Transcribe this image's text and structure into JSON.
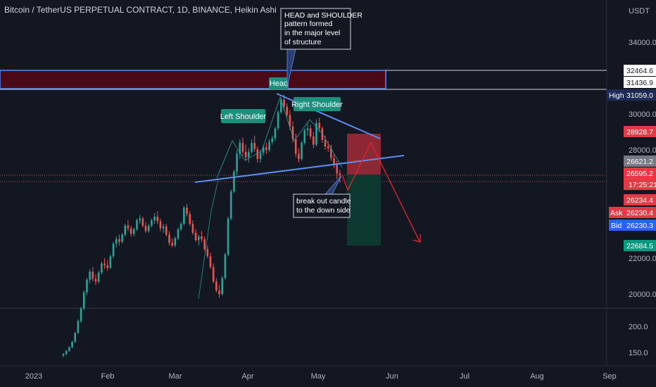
{
  "header": {
    "title": "Bitcoin / TetherUS PERPETUAL CONTRACT, 1D, BINANCE, Heikin Ashi",
    "unit": "USDT"
  },
  "colors": {
    "background": "#131722",
    "up": "#26a69a",
    "down": "#ef5350",
    "trendline": "#5b8def",
    "supply_zone": "#4a0a17",
    "profit_zone": "#0e3b31",
    "loss_zone": "#a12b37"
  },
  "chart_data": {
    "type": "candlestick",
    "price_scale": {
      "ticks": [
        {
          "label": "34000.0",
          "value": 34000
        },
        {
          "label": "30000.0",
          "value": 30000
        },
        {
          "label": "28000.0",
          "value": 28000
        },
        {
          "label": "22000.0",
          "value": 22000
        },
        {
          "label": "20000.0",
          "value": 20000
        }
      ],
      "volume_ticks": [
        "200.0",
        "150.0"
      ]
    },
    "time_scale": {
      "ticks": [
        "2023",
        "Feb",
        "Mar",
        "Apr",
        "May",
        "Jun",
        "Jul",
        "Aug",
        "Sep"
      ]
    },
    "price_badges": [
      {
        "label": "32464.6",
        "value": 32464.6,
        "kind": "line-white"
      },
      {
        "label": "31436.9",
        "value": 31436.9,
        "kind": "line-white"
      },
      {
        "label": "High",
        "value": 31059.0,
        "kind": "high-tag",
        "price_label": "31059.0"
      },
      {
        "label": "28928.7",
        "value": 28928.7,
        "kind": "red"
      },
      {
        "label": "26621.2",
        "value": 26621.2,
        "kind": "grey"
      },
      {
        "label": "26595.2",
        "value": 26595.2,
        "kind": "red",
        "sub": "17:25:21"
      },
      {
        "label": "26234.4",
        "value": 26234.4,
        "kind": "red"
      },
      {
        "label": "Ask",
        "value": 26230.4,
        "kind": "ask",
        "price_label": "26230.4"
      },
      {
        "label": "Bid",
        "value": 26230.3,
        "kind": "bid",
        "price_label": "26230.3"
      },
      {
        "label": "22684.5",
        "value": 22684.5,
        "kind": "green"
      }
    ],
    "annotations": [
      {
        "text": "Head",
        "style": "teal"
      },
      {
        "text": "Left Shoulder",
        "style": "teal"
      },
      {
        "text": "Right Shoulder",
        "style": "teal"
      },
      {
        "lines": [
          "HEAD and SHOULDER",
          "pattern formed",
          "in the major level",
          "of structure"
        ],
        "style": "note"
      },
      {
        "lines": [
          "break out candle",
          "to the down side"
        ],
        "style": "note"
      }
    ],
    "candles": [
      [
        16600,
        16720,
        16500,
        16680
      ],
      [
        16680,
        16900,
        16620,
        16850
      ],
      [
        16850,
        17100,
        16800,
        17050
      ],
      [
        17050,
        17400,
        17000,
        17350
      ],
      [
        17350,
        17900,
        17300,
        17850
      ],
      [
        17850,
        18600,
        17800,
        18500
      ],
      [
        18500,
        19300,
        18400,
        19200
      ],
      [
        19200,
        20200,
        19100,
        20100
      ],
      [
        20100,
        20900,
        19950,
        20800
      ],
      [
        20800,
        21400,
        20600,
        21250
      ],
      [
        21250,
        21500,
        20700,
        20850
      ],
      [
        20850,
        21100,
        20500,
        20700
      ],
      [
        20700,
        21300,
        20600,
        21200
      ],
      [
        21200,
        21800,
        21100,
        21700
      ],
      [
        21700,
        22000,
        21400,
        21600
      ],
      [
        21600,
        21900,
        21300,
        21450
      ],
      [
        21450,
        22200,
        21400,
        22100
      ],
      [
        22100,
        22900,
        22000,
        22800
      ],
      [
        22800,
        23200,
        22600,
        23050
      ],
      [
        23050,
        23300,
        22700,
        22900
      ],
      [
        22900,
        23400,
        22800,
        23300
      ],
      [
        23300,
        23900,
        23200,
        23800
      ],
      [
        23800,
        24100,
        23500,
        23650
      ],
      [
        23650,
        23800,
        23200,
        23350
      ],
      [
        23350,
        23700,
        23200,
        23600
      ],
      [
        23600,
        24200,
        23500,
        24100
      ],
      [
        24100,
        24400,
        23900,
        24200
      ],
      [
        24200,
        24300,
        23700,
        23800
      ],
      [
        23800,
        24000,
        23400,
        23500
      ],
      [
        23500,
        23900,
        23400,
        23800
      ],
      [
        23800,
        24200,
        23700,
        24100
      ],
      [
        24100,
        24500,
        23900,
        24300
      ],
      [
        24300,
        24600,
        23900,
        24050
      ],
      [
        24050,
        24200,
        23500,
        23650
      ],
      [
        23650,
        23900,
        23400,
        23750
      ],
      [
        23750,
        23900,
        23200,
        23300
      ],
      [
        23300,
        23500,
        22700,
        22850
      ],
      [
        22850,
        23100,
        22600,
        22700
      ],
      [
        22700,
        23200,
        22600,
        23100
      ],
      [
        23100,
        23700,
        23000,
        23600
      ],
      [
        23600,
        24000,
        23500,
        23900
      ],
      [
        23900,
        24900,
        23800,
        24800
      ],
      [
        24800,
        25000,
        24300,
        24450
      ],
      [
        24450,
        24600,
        23800,
        23900
      ],
      [
        23900,
        24100,
        23300,
        23400
      ],
      [
        23400,
        23600,
        22900,
        23000
      ],
      [
        23000,
        23300,
        22700,
        23200
      ],
      [
        23200,
        23500,
        22900,
        23050
      ],
      [
        23050,
        23200,
        22400,
        22500
      ],
      [
        22500,
        22700,
        22000,
        22100
      ],
      [
        22100,
        22300,
        21400,
        21500
      ],
      [
        21500,
        21700,
        20600,
        20700
      ],
      [
        20700,
        20900,
        20100,
        20200
      ],
      [
        20200,
        20500,
        19800,
        20000
      ],
      [
        20000,
        21000,
        19900,
        20900
      ],
      [
        20900,
        22300,
        20800,
        22200
      ],
      [
        22200,
        24300,
        22100,
        24200
      ],
      [
        24200,
        25800,
        24100,
        25700
      ],
      [
        25700,
        26900,
        25600,
        26800
      ],
      [
        26800,
        28000,
        26600,
        27800
      ],
      [
        27800,
        28600,
        27500,
        28400
      ],
      [
        28400,
        28700,
        27700,
        27900
      ],
      [
        27900,
        28300,
        27400,
        27600
      ],
      [
        27600,
        28100,
        27300,
        27900
      ],
      [
        27900,
        28600,
        27800,
        28400
      ],
      [
        28400,
        28800,
        27900,
        28050
      ],
      [
        28050,
        28200,
        27300,
        27500
      ],
      [
        27500,
        28000,
        27300,
        27850
      ],
      [
        27850,
        28300,
        27700,
        28150
      ],
      [
        28150,
        28400,
        27800,
        28000
      ],
      [
        28000,
        28600,
        27900,
        28450
      ],
      [
        28450,
        28800,
        28300,
        28650
      ],
      [
        28650,
        29300,
        28500,
        29200
      ],
      [
        29200,
        30200,
        29100,
        30100
      ],
      [
        30100,
        30900,
        30000,
        30800
      ],
      [
        30800,
        31059,
        30200,
        30400
      ],
      [
        30400,
        30600,
        29800,
        29950
      ],
      [
        29950,
        30200,
        29100,
        29300
      ],
      [
        29300,
        29600,
        28400,
        28600
      ],
      [
        28600,
        28900,
        27600,
        27800
      ],
      [
        27800,
        28100,
        27300,
        27500
      ],
      [
        27500,
        28500,
        27400,
        28400
      ],
      [
        28400,
        29200,
        28300,
        29100
      ],
      [
        29100,
        29500,
        28800,
        29200
      ],
      [
        29200,
        29400,
        28600,
        28750
      ],
      [
        28750,
        29000,
        28100,
        28300
      ],
      [
        28300,
        29700,
        28200,
        29500
      ],
      [
        29500,
        29800,
        29000,
        29200
      ],
      [
        29200,
        29300,
        28400,
        28550
      ],
      [
        28550,
        28800,
        28000,
        28200
      ],
      [
        28200,
        28500,
        27900,
        28100
      ],
      [
        28100,
        28300,
        27400,
        27550
      ],
      [
        27550,
        27800,
        27000,
        27200
      ],
      [
        27200,
        27400,
        26400,
        26700
      ],
      [
        26700,
        26900,
        26200,
        26595
      ]
    ]
  }
}
